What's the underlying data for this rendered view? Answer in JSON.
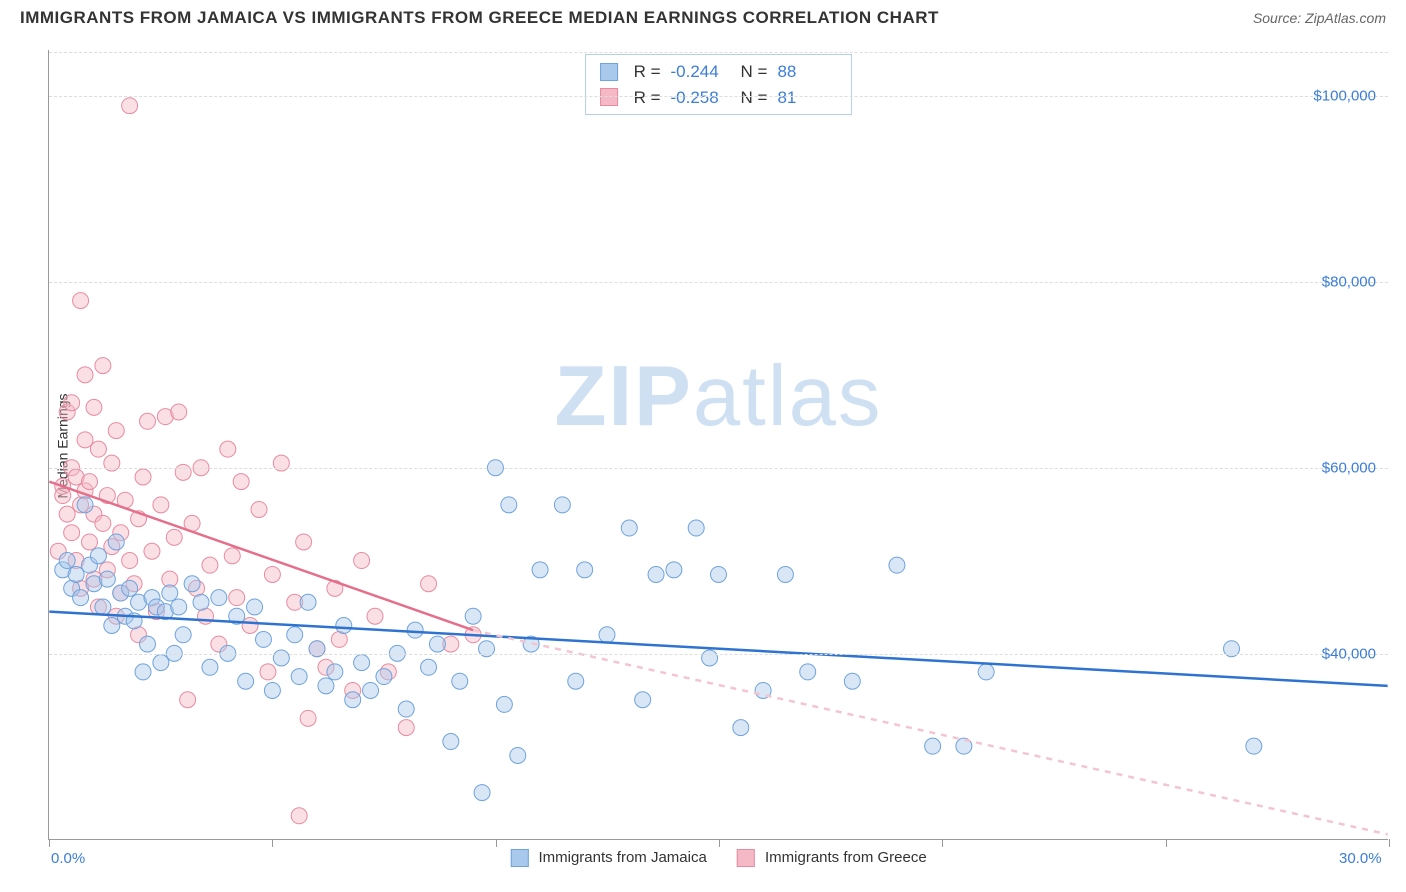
{
  "title": "IMMIGRANTS FROM JAMAICA VS IMMIGRANTS FROM GREECE MEDIAN EARNINGS CORRELATION CHART",
  "source": "Source: ZipAtlas.com",
  "y_axis_label": "Median Earnings",
  "watermark_a": "ZIP",
  "watermark_b": "atlas",
  "chart": {
    "type": "scatter",
    "xlim": [
      0,
      30
    ],
    "ylim": [
      20000,
      105000
    ],
    "x_ticks": [
      0,
      5,
      10,
      15,
      20,
      25,
      30
    ],
    "x_labels_shown": {
      "0": "0.0%",
      "30": "30.0%"
    },
    "y_ticks": [
      40000,
      60000,
      80000,
      100000
    ],
    "y_labels": {
      "40000": "$40,000",
      "60000": "$60,000",
      "80000": "$80,000",
      "100000": "$100,000"
    },
    "grid_color": "#dddddd",
    "axis_color": "#999999",
    "tick_label_color": "#3b7dd8",
    "background_color": "#ffffff",
    "marker_radius": 8,
    "marker_opacity": 0.45,
    "line_width": 2.5,
    "dashed_extrapolation": true
  },
  "series": {
    "jamaica": {
      "label": "Immigrants from Jamaica",
      "fill_color": "#a8c8ec",
      "stroke_color": "#6fa3db",
      "line_color": "#2f73d0",
      "regression": {
        "x1": 0,
        "y1": 44500,
        "x2": 30,
        "y2": 36500
      },
      "stats": {
        "R_label": "R =",
        "R": "-0.244",
        "N_label": "N =",
        "N": "88"
      },
      "points": [
        [
          0.3,
          49000
        ],
        [
          0.4,
          50000
        ],
        [
          0.5,
          47000
        ],
        [
          0.6,
          48500
        ],
        [
          0.7,
          46000
        ],
        [
          0.8,
          56000
        ],
        [
          0.9,
          49500
        ],
        [
          1.0,
          47500
        ],
        [
          1.1,
          50500
        ],
        [
          1.2,
          45000
        ],
        [
          1.3,
          48000
        ],
        [
          1.4,
          43000
        ],
        [
          1.5,
          52000
        ],
        [
          1.6,
          46500
        ],
        [
          1.7,
          44000
        ],
        [
          1.8,
          47000
        ],
        [
          1.9,
          43500
        ],
        [
          2.0,
          45500
        ],
        [
          2.1,
          38000
        ],
        [
          2.2,
          41000
        ],
        [
          2.3,
          46000
        ],
        [
          2.4,
          45000
        ],
        [
          2.5,
          39000
        ],
        [
          2.6,
          44500
        ],
        [
          2.7,
          46500
        ],
        [
          2.8,
          40000
        ],
        [
          2.9,
          45000
        ],
        [
          3.0,
          42000
        ],
        [
          3.2,
          47500
        ],
        [
          3.4,
          45500
        ],
        [
          3.6,
          38500
        ],
        [
          3.8,
          46000
        ],
        [
          4.0,
          40000
        ],
        [
          4.2,
          44000
        ],
        [
          4.4,
          37000
        ],
        [
          4.6,
          45000
        ],
        [
          4.8,
          41500
        ],
        [
          5.0,
          36000
        ],
        [
          5.2,
          39500
        ],
        [
          5.5,
          42000
        ],
        [
          5.6,
          37500
        ],
        [
          5.8,
          45500
        ],
        [
          6.0,
          40500
        ],
        [
          6.2,
          36500
        ],
        [
          6.4,
          38000
        ],
        [
          6.6,
          43000
        ],
        [
          6.8,
          35000
        ],
        [
          7.0,
          39000
        ],
        [
          7.2,
          36000
        ],
        [
          7.5,
          37500
        ],
        [
          7.8,
          40000
        ],
        [
          8.0,
          34000
        ],
        [
          8.2,
          42500
        ],
        [
          8.5,
          38500
        ],
        [
          8.7,
          41000
        ],
        [
          9.0,
          30500
        ],
        [
          9.2,
          37000
        ],
        [
          9.5,
          44000
        ],
        [
          9.7,
          25000
        ],
        [
          9.8,
          40500
        ],
        [
          10.0,
          60000
        ],
        [
          10.2,
          34500
        ],
        [
          10.3,
          56000
        ],
        [
          10.5,
          29000
        ],
        [
          10.8,
          41000
        ],
        [
          11.0,
          49000
        ],
        [
          11.5,
          56000
        ],
        [
          11.8,
          37000
        ],
        [
          12.0,
          49000
        ],
        [
          12.5,
          42000
        ],
        [
          13.0,
          53500
        ],
        [
          13.3,
          35000
        ],
        [
          13.6,
          48500
        ],
        [
          14.0,
          49000
        ],
        [
          14.5,
          53500
        ],
        [
          14.8,
          39500
        ],
        [
          15.0,
          48500
        ],
        [
          15.5,
          32000
        ],
        [
          16.0,
          36000
        ],
        [
          16.5,
          48500
        ],
        [
          17.0,
          38000
        ],
        [
          18.0,
          37000
        ],
        [
          19.0,
          49500
        ],
        [
          19.8,
          30000
        ],
        [
          20.5,
          30000
        ],
        [
          21.0,
          38000
        ],
        [
          26.5,
          40500
        ],
        [
          27.0,
          30000
        ]
      ]
    },
    "greece": {
      "label": "Immigrants from Greece",
      "fill_color": "#f5b8c5",
      "stroke_color": "#e88ba0",
      "line_color": "#e56f8b",
      "regression": {
        "x1": 0,
        "y1": 58500,
        "x2": 9.5,
        "y2": 42500
      },
      "extrapolation": {
        "x1": 9.5,
        "y1": 42500,
        "x2": 30,
        "y2": 8000
      },
      "stats": {
        "R_label": "R =",
        "R": "-0.258",
        "N_label": "N =",
        "N": "81"
      },
      "points": [
        [
          0.2,
          51000
        ],
        [
          0.3,
          58000
        ],
        [
          0.3,
          57000
        ],
        [
          0.4,
          66000
        ],
        [
          0.4,
          55000
        ],
        [
          0.5,
          67000
        ],
        [
          0.5,
          60000
        ],
        [
          0.5,
          53000
        ],
        [
          0.6,
          59000
        ],
        [
          0.6,
          50000
        ],
        [
          0.7,
          78000
        ],
        [
          0.7,
          56000
        ],
        [
          0.7,
          47000
        ],
        [
          0.8,
          63000
        ],
        [
          0.8,
          57500
        ],
        [
          0.8,
          70000
        ],
        [
          0.9,
          52000
        ],
        [
          0.9,
          58500
        ],
        [
          1.0,
          66500
        ],
        [
          1.0,
          55000
        ],
        [
          1.0,
          48000
        ],
        [
          1.1,
          62000
        ],
        [
          1.1,
          45000
        ],
        [
          1.2,
          71000
        ],
        [
          1.2,
          54000
        ],
        [
          1.3,
          49000
        ],
        [
          1.3,
          57000
        ],
        [
          1.4,
          51500
        ],
        [
          1.4,
          60500
        ],
        [
          1.5,
          44000
        ],
        [
          1.5,
          64000
        ],
        [
          1.6,
          46500
        ],
        [
          1.6,
          53000
        ],
        [
          1.7,
          56500
        ],
        [
          1.8,
          50000
        ],
        [
          1.8,
          99000
        ],
        [
          1.9,
          47500
        ],
        [
          2.0,
          54500
        ],
        [
          2.0,
          42000
        ],
        [
          2.1,
          59000
        ],
        [
          2.2,
          65000
        ],
        [
          2.3,
          51000
        ],
        [
          2.4,
          44500
        ],
        [
          2.5,
          56000
        ],
        [
          2.6,
          65500
        ],
        [
          2.7,
          48000
        ],
        [
          2.8,
          52500
        ],
        [
          2.9,
          66000
        ],
        [
          3.0,
          59500
        ],
        [
          3.1,
          35000
        ],
        [
          3.2,
          54000
        ],
        [
          3.3,
          47000
        ],
        [
          3.4,
          60000
        ],
        [
          3.5,
          44000
        ],
        [
          3.6,
          49500
        ],
        [
          3.8,
          41000
        ],
        [
          4.0,
          62000
        ],
        [
          4.1,
          50500
        ],
        [
          4.2,
          46000
        ],
        [
          4.3,
          58500
        ],
        [
          4.5,
          43000
        ],
        [
          4.7,
          55500
        ],
        [
          4.9,
          38000
        ],
        [
          5.0,
          48500
        ],
        [
          5.2,
          60500
        ],
        [
          5.5,
          45500
        ],
        [
          5.6,
          22500
        ],
        [
          5.7,
          52000
        ],
        [
          5.8,
          33000
        ],
        [
          6.0,
          40500
        ],
        [
          6.2,
          38500
        ],
        [
          6.4,
          47000
        ],
        [
          6.5,
          41500
        ],
        [
          6.8,
          36000
        ],
        [
          7.0,
          50000
        ],
        [
          7.3,
          44000
        ],
        [
          7.6,
          38000
        ],
        [
          8.0,
          32000
        ],
        [
          8.5,
          47500
        ],
        [
          9.0,
          41000
        ],
        [
          9.5,
          42000
        ]
      ]
    }
  }
}
